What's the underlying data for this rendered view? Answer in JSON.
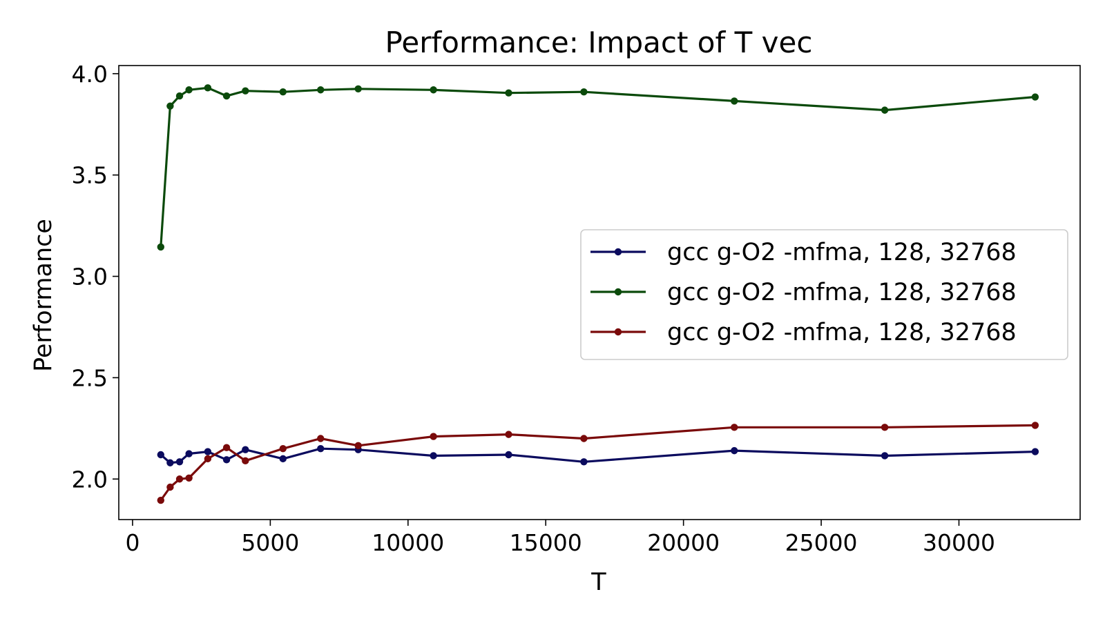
{
  "chart_data": {
    "type": "line",
    "title": "Performance: Impact of T vec",
    "xlabel": "T",
    "ylabel": "Performance",
    "xlim": [
      -500,
      34400
    ],
    "ylim": [
      1.8,
      4.04
    ],
    "xticks": [
      0,
      5000,
      10000,
      15000,
      20000,
      25000,
      30000
    ],
    "xtick_labels": [
      "0",
      "5000",
      "10000",
      "15000",
      "20000",
      "25000",
      "30000"
    ],
    "yticks": [
      2.0,
      2.5,
      3.0,
      3.5,
      4.0
    ],
    "ytick_labels": [
      "2.0",
      "2.5",
      "3.0",
      "3.5",
      "4.0"
    ],
    "grid": false,
    "legend_position": "center-right",
    "x": [
      1024,
      1365,
      1707,
      2048,
      2731,
      3413,
      4096,
      5461,
      6827,
      8192,
      10923,
      13653,
      16384,
      21845,
      27307,
      32768
    ],
    "series": [
      {
        "name": "gcc g-O2 -mfma, 128, 32768",
        "color": "#0b0b5e",
        "values": [
          2.12,
          2.08,
          2.085,
          2.125,
          2.135,
          2.095,
          2.145,
          2.1,
          2.15,
          2.145,
          2.115,
          2.12,
          2.085,
          2.14,
          2.115,
          2.135
        ]
      },
      {
        "name": "gcc g-O2 -mfma, 128, 32768",
        "color": "#0b4a0b",
        "values": [
          3.145,
          3.84,
          3.89,
          3.92,
          3.93,
          3.89,
          3.915,
          3.91,
          3.92,
          3.925,
          3.92,
          3.905,
          3.91,
          3.865,
          3.82,
          3.885
        ]
      },
      {
        "name": "gcc g-O2 -mfma, 128, 32768",
        "color": "#7a0a0a",
        "values": [
          1.895,
          1.96,
          2.0,
          2.005,
          2.1,
          2.155,
          2.09,
          2.15,
          2.2,
          2.165,
          2.21,
          2.22,
          2.2,
          2.255,
          2.255,
          2.265
        ]
      }
    ]
  }
}
